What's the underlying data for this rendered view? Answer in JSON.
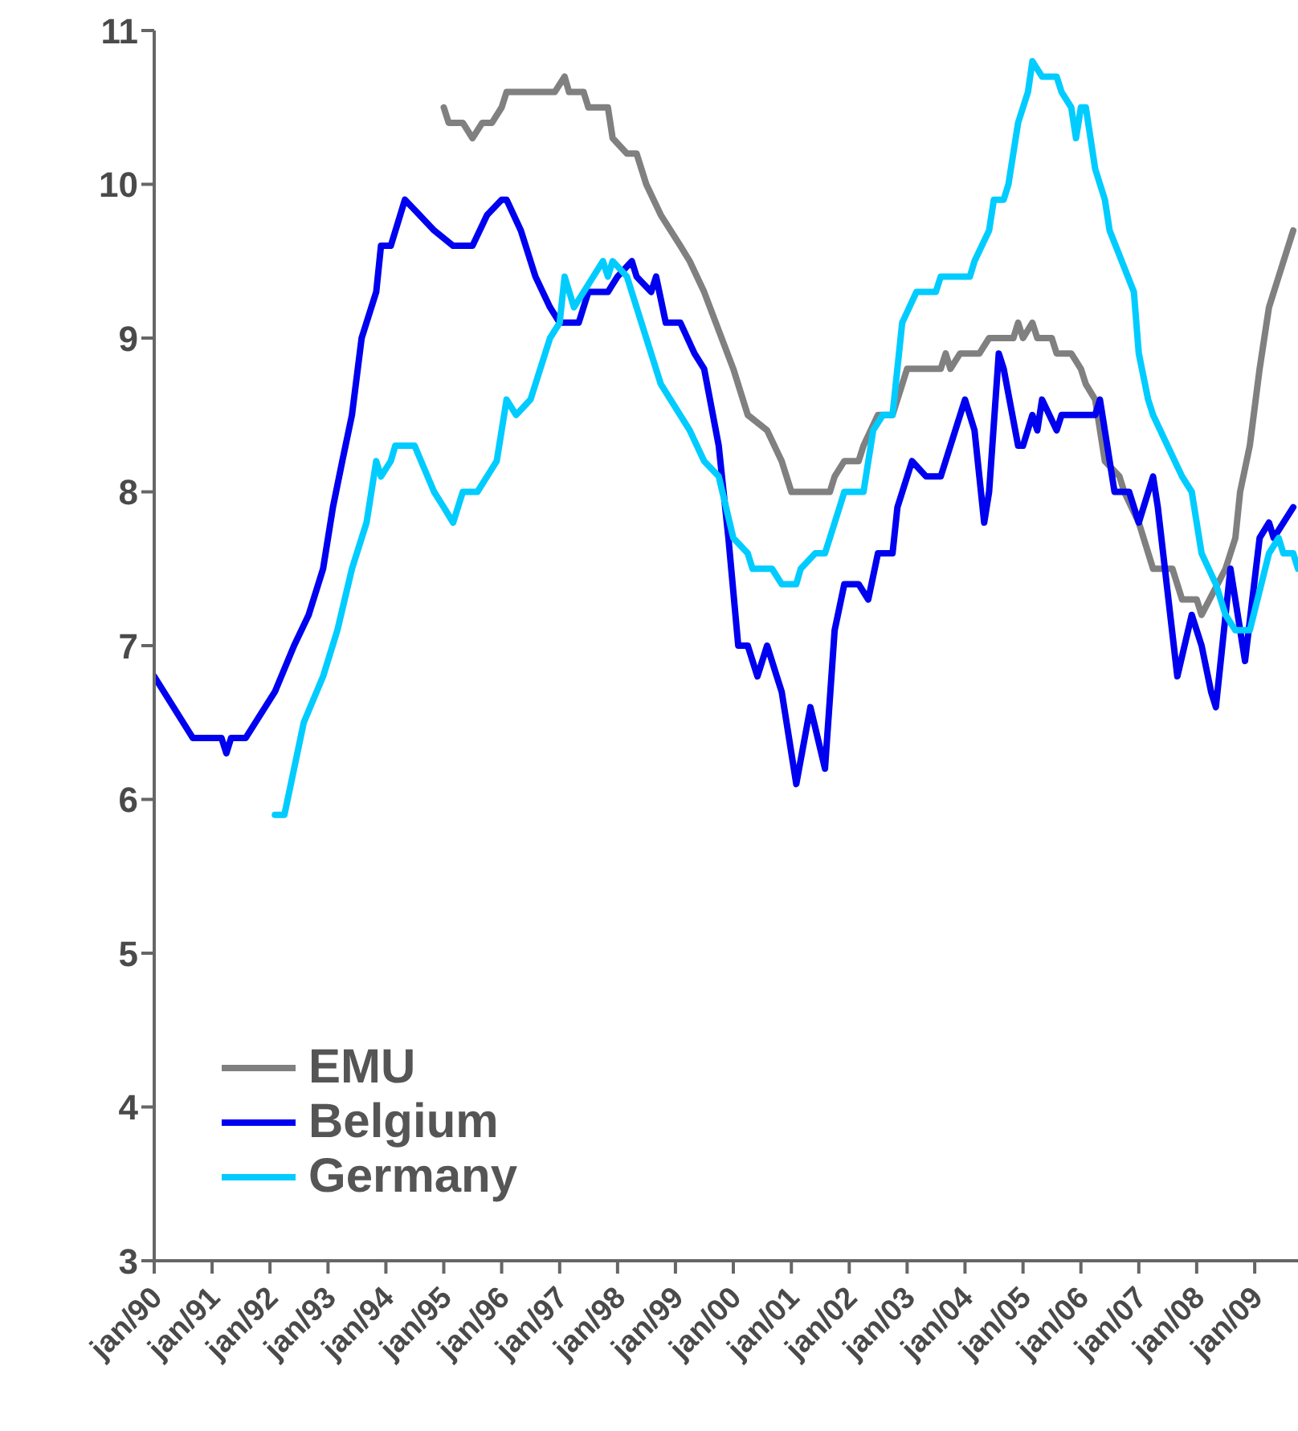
{
  "chart_data": {
    "type": "line",
    "xlim": [
      "1990-01",
      "2009-10"
    ],
    "ylim": [
      3,
      11
    ],
    "yticks": [
      3,
      4,
      5,
      6,
      7,
      8,
      9,
      10,
      11
    ],
    "xticks": [
      {
        "value": "1990-01",
        "label": "jan/90"
      },
      {
        "value": "1991-01",
        "label": "jan/91"
      },
      {
        "value": "1992-01",
        "label": "jan/92"
      },
      {
        "value": "1993-01",
        "label": "jan/93"
      },
      {
        "value": "1994-01",
        "label": "jan/94"
      },
      {
        "value": "1995-01",
        "label": "jan/95"
      },
      {
        "value": "1996-01",
        "label": "jan/96"
      },
      {
        "value": "1997-01",
        "label": "jan/97"
      },
      {
        "value": "1998-01",
        "label": "jan/98"
      },
      {
        "value": "1999-01",
        "label": "jan/99"
      },
      {
        "value": "2000-01",
        "label": "jan/00"
      },
      {
        "value": "2001-01",
        "label": "jan/01"
      },
      {
        "value": "2002-01",
        "label": "jan/02"
      },
      {
        "value": "2003-01",
        "label": "jan/03"
      },
      {
        "value": "2004-01",
        "label": "jan/04"
      },
      {
        "value": "2005-01",
        "label": "jan/05"
      },
      {
        "value": "2006-01",
        "label": "jan/06"
      },
      {
        "value": "2007-01",
        "label": "jan/07"
      },
      {
        "value": "2008-01",
        "label": "jan/08"
      },
      {
        "value": "2009-01",
        "label": "jan/09"
      }
    ],
    "grid": false,
    "legend": "bottom left",
    "marker": "none",
    "line_style": "solid",
    "series": [
      {
        "name": "EMU",
        "color": "#808080",
        "x": [
          "1995-01",
          "1995-02",
          "1995-05",
          "1995-07",
          "1995-09",
          "1995-11",
          "1996-01",
          "1996-02",
          "1996-12",
          "1997-02",
          "1997-03",
          "1997-06",
          "1997-07",
          "1997-11",
          "1997-12",
          "1998-03",
          "1998-05",
          "1998-07",
          "1998-10",
          "1999-02",
          "1999-04",
          "1999-07",
          "2000-01",
          "2000-04",
          "2000-08",
          "2000-11",
          "2001-01",
          "2001-09",
          "2001-10",
          "2001-12",
          "2002-03",
          "2002-04",
          "2002-07",
          "2002-10",
          "2003-01",
          "2003-08",
          "2003-09",
          "2003-10",
          "2003-12",
          "2004-04",
          "2004-06",
          "2004-11",
          "2004-12",
          "2005-01",
          "2005-03",
          "2005-04",
          "2005-07",
          "2005-08",
          "2005-11",
          "2006-01",
          "2006-02",
          "2006-04",
          "2006-06",
          "2006-09",
          "2006-10",
          "2007-01",
          "2007-04",
          "2007-08",
          "2007-10",
          "2008-01",
          "2008-02",
          "2008-07",
          "2008-09",
          "2008-10",
          "2008-12",
          "2009-02",
          "2009-04",
          "2009-06",
          "2009-09"
        ],
        "values": [
          10.5,
          10.4,
          10.4,
          10.3,
          10.4,
          10.4,
          10.5,
          10.6,
          10.6,
          10.7,
          10.6,
          10.6,
          10.5,
          10.5,
          10.3,
          10.2,
          10.2,
          10.0,
          9.8,
          9.6,
          9.5,
          9.3,
          8.8,
          8.5,
          8.4,
          8.2,
          8.0,
          8.0,
          8.1,
          8.2,
          8.2,
          8.3,
          8.5,
          8.5,
          8.8,
          8.8,
          8.9,
          8.8,
          8.9,
          8.9,
          9.0,
          9.0,
          9.1,
          9.0,
          9.1,
          9.0,
          9.0,
          8.9,
          8.9,
          8.8,
          8.7,
          8.6,
          8.2,
          8.1,
          8.0,
          7.8,
          7.5,
          7.5,
          7.3,
          7.3,
          7.2,
          7.5,
          7.7,
          8.0,
          8.3,
          8.8,
          9.2,
          9.4,
          9.7
        ]
      },
      {
        "name": "Belgium",
        "color": "#0000f0",
        "x": [
          "1990-01",
          "1990-09",
          "1991-03",
          "1991-04",
          "1991-05",
          "1991-08",
          "1992-02",
          "1992-06",
          "1992-09",
          "1992-12",
          "1993-02",
          "1993-04",
          "1993-06",
          "1993-08",
          "1993-11",
          "1993-12",
          "1994-02",
          "1994-05",
          "1994-08",
          "1994-11",
          "1995-03",
          "1995-07",
          "1995-10",
          "1996-01",
          "1996-02",
          "1996-05",
          "1996-08",
          "1996-11",
          "1997-01",
          "1997-05",
          "1997-07",
          "1997-11",
          "1998-01",
          "1998-04",
          "1998-05",
          "1998-08",
          "1998-09",
          "1998-11",
          "1999-02",
          "1999-05",
          "1999-07",
          "1999-10",
          "1999-12",
          "2000-02",
          "2000-04",
          "2000-06",
          "2000-08",
          "2000-10",
          "2000-11",
          "2001-02",
          "2001-05",
          "2001-08",
          "2001-10",
          "2001-12",
          "2002-03",
          "2002-05",
          "2002-07",
          "2002-10",
          "2002-11",
          "2003-02",
          "2003-05",
          "2003-08",
          "2004-01",
          "2004-03",
          "2004-05",
          "2004-06",
          "2004-08",
          "2004-09",
          "2004-12",
          "2005-01",
          "2005-03",
          "2005-04",
          "2005-05",
          "2005-08",
          "2005-09",
          "2006-04",
          "2006-05",
          "2006-08",
          "2006-11",
          "2007-01",
          "2007-04",
          "2007-05",
          "2007-09",
          "2007-12",
          "2008-02",
          "2008-04",
          "2008-05",
          "2008-08",
          "2008-11",
          "2009-02",
          "2009-04",
          "2009-05",
          "2009-09"
        ],
        "values": [
          6.8,
          6.4,
          6.4,
          6.3,
          6.4,
          6.4,
          6.7,
          7.0,
          7.2,
          7.5,
          7.9,
          8.2,
          8.5,
          9.0,
          9.3,
          9.6,
          9.6,
          9.9,
          9.8,
          9.7,
          9.6,
          9.6,
          9.8,
          9.9,
          9.9,
          9.7,
          9.4,
          9.2,
          9.1,
          9.1,
          9.3,
          9.3,
          9.4,
          9.5,
          9.4,
          9.3,
          9.4,
          9.1,
          9.1,
          8.9,
          8.8,
          8.3,
          7.7,
          7.0,
          7.0,
          6.8,
          7.0,
          6.8,
          6.7,
          6.1,
          6.6,
          6.2,
          7.1,
          7.4,
          7.4,
          7.3,
          7.6,
          7.6,
          7.9,
          8.2,
          8.1,
          8.1,
          8.6,
          8.4,
          7.8,
          8.0,
          8.9,
          8.8,
          8.3,
          8.3,
          8.5,
          8.4,
          8.6,
          8.4,
          8.5,
          8.5,
          8.6,
          8.0,
          8.0,
          7.8,
          8.1,
          7.9,
          6.8,
          7.2,
          7.0,
          6.7,
          6.6,
          7.5,
          6.9,
          7.7,
          7.8,
          7.7,
          7.9
        ]
      },
      {
        "name": "Germany",
        "color": "#00ccff",
        "x": [
          "1992-02",
          "1992-04",
          "1992-06",
          "1992-08",
          "1992-12",
          "1993-03",
          "1993-06",
          "1993-09",
          "1993-11",
          "1993-12",
          "1994-02",
          "1994-03",
          "1994-07",
          "1994-11",
          "1995-01",
          "1995-03",
          "1995-05",
          "1995-08",
          "1995-10",
          "1995-12",
          "1996-02",
          "1996-04",
          "1996-07",
          "1996-11",
          "1997-01",
          "1997-02",
          "1997-04",
          "1997-06",
          "1997-08",
          "1997-10",
          "1997-11",
          "1997-12",
          "1998-03",
          "1998-05",
          "1998-07",
          "1998-10",
          "1998-12",
          "1999-04",
          "1999-07",
          "1999-10",
          "2000-01",
          "2000-04",
          "2000-05",
          "2000-09",
          "2000-11",
          "2001-02",
          "2001-03",
          "2001-06",
          "2001-08",
          "2001-11",
          "2001-12",
          "2002-04",
          "2002-06",
          "2002-08",
          "2002-10",
          "2002-12",
          "2003-03",
          "2003-07",
          "2003-08",
          "2004-02",
          "2004-03",
          "2004-06",
          "2004-07",
          "2004-09",
          "2004-10",
          "2004-12",
          "2005-02",
          "2005-03",
          "2005-05",
          "2005-08",
          "2005-09",
          "2005-11",
          "2005-12",
          "2006-01",
          "2006-02",
          "2006-04",
          "2006-06",
          "2006-07",
          "2006-12",
          "2007-01",
          "2007-03",
          "2007-04",
          "2007-07",
          "2007-10",
          "2007-12",
          "2008-02",
          "2008-05",
          "2008-07",
          "2008-09",
          "2008-12",
          "2009-04",
          "2009-06",
          "2009-07",
          "2009-09",
          "2009-10"
        ],
        "values": [
          5.9,
          5.9,
          6.2,
          6.5,
          6.8,
          7.1,
          7.5,
          7.8,
          8.2,
          8.1,
          8.2,
          8.3,
          8.3,
          8.0,
          7.9,
          7.8,
          8.0,
          8.0,
          8.1,
          8.2,
          8.6,
          8.5,
          8.6,
          9.0,
          9.1,
          9.4,
          9.2,
          9.3,
          9.4,
          9.5,
          9.4,
          9.5,
          9.4,
          9.2,
          9.0,
          8.7,
          8.6,
          8.4,
          8.2,
          8.1,
          7.7,
          7.6,
          7.5,
          7.5,
          7.4,
          7.4,
          7.5,
          7.6,
          7.6,
          7.9,
          8.0,
          8.0,
          8.4,
          8.5,
          8.5,
          9.1,
          9.3,
          9.3,
          9.4,
          9.4,
          9.5,
          9.7,
          9.9,
          9.9,
          10.0,
          10.4,
          10.6,
          10.8,
          10.7,
          10.7,
          10.6,
          10.5,
          10.3,
          10.5,
          10.5,
          10.1,
          9.9,
          9.7,
          9.3,
          8.9,
          8.6,
          8.5,
          8.3,
          8.1,
          8.0,
          7.6,
          7.4,
          7.2,
          7.1,
          7.1,
          7.6,
          7.7,
          7.6,
          7.6,
          7.5
        ]
      }
    ]
  }
}
